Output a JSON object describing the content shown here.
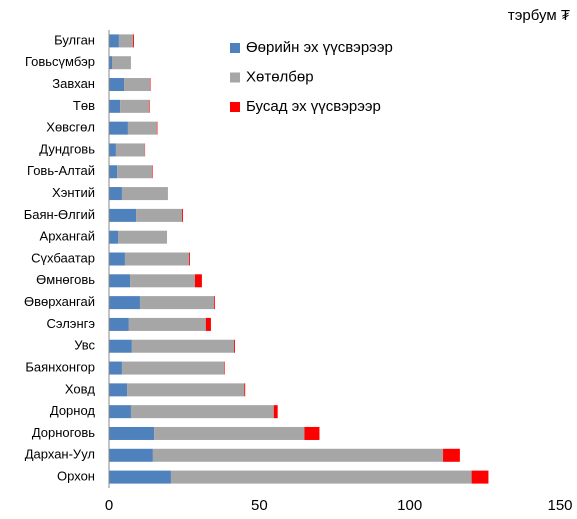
{
  "chart_data": {
    "type": "bar",
    "orientation": "horizontal",
    "stacked": true,
    "unit_label": "тэрбум ₮",
    "categories": [
      "Булган",
      "Говьсүмбэр",
      "Завхан",
      "Төв",
      "Хөвсгөл",
      "Дундговь",
      "Говь-Алтай",
      "Хэнтий",
      "Баян-Өлгий",
      "Архангай",
      "Сүхбаатар",
      "Өмнөговь",
      "Өвөрхангай",
      "Сэлэнгэ",
      "Увс",
      "Баянхонгор",
      "Ховд",
      "Дорнод",
      "Дорноговь",
      "Дархан-Уул",
      "Орхон"
    ],
    "series": [
      {
        "name": "Өөрийн эх үүсвэрээр",
        "color": "#4f81bd",
        "values": [
          3.3,
          1,
          5,
          3.7,
          6.3,
          2.3,
          2.7,
          4.3,
          9,
          3,
          5.3,
          7,
          10.3,
          6.6,
          7.6,
          4.3,
          6,
          7.3,
          15,
          14.6,
          20.6
        ]
      },
      {
        "name": "Хөтөлбөр",
        "color": "#a6a6a6",
        "values": [
          4.7,
          6.3,
          8.6,
          9.6,
          9.6,
          9.6,
          11.6,
          15.3,
          15.3,
          16.3,
          21.3,
          21.6,
          24.6,
          25.6,
          34,
          34,
          39,
          47.5,
          50,
          96.5,
          100
        ]
      },
      {
        "name": "Бусад эх үүсвэрээр",
        "color": "#ff0000",
        "values": [
          0.3,
          0,
          0.2,
          0.2,
          0.2,
          0.1,
          0.2,
          0,
          0.3,
          0,
          0.3,
          2.3,
          0.3,
          1.7,
          0.3,
          0.2,
          0.3,
          1.3,
          5,
          5.6,
          5.6
        ]
      }
    ],
    "xlim": [
      0,
      150
    ],
    "xticks": [
      0,
      50,
      100,
      150
    ],
    "grid": false,
    "legend": "upper center"
  }
}
